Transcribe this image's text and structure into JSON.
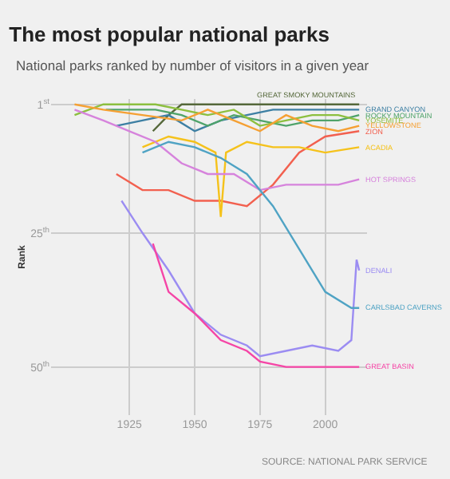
{
  "chart_data": {
    "type": "line",
    "title": "The most popular national parks",
    "subtitle": "National parks ranked by number of visitors in a given year",
    "ylabel": "Rank",
    "xlim": [
      1895,
      2016
    ],
    "xticks": [
      1925,
      1950,
      1975,
      2000
    ],
    "ylim": [
      59,
      0
    ],
    "yticks": [
      {
        "value": 1,
        "label": "1$^{st}$"
      },
      {
        "value": 25,
        "label": "25$^{th}$"
      },
      {
        "value": 50,
        "label": "50$^{th}$"
      }
    ],
    "grid": true,
    "legend": false,
    "marker": "none",
    "line_style": "solid",
    "annotations": [
      "SOURCE: NATIONAL PARK SERVICE"
    ],
    "series": [
      {
        "name": "GREAT SMOKY MOUNTAINS",
        "color": "#55683a",
        "x": [
          1934,
          1940,
          1945,
          1960,
          1980,
          2000,
          2013
        ],
        "values": [
          6,
          3,
          1,
          1,
          1,
          1,
          1
        ]
      },
      {
        "name": "GRAND CANYON",
        "color": "#3d7fa3",
        "x": [
          1920,
          1930,
          1940,
          1950,
          1960,
          1970,
          1980,
          1990,
          2000,
          2013
        ],
        "values": [
          5,
          4,
          3,
          6,
          4,
          3,
          2,
          2,
          2,
          2
        ]
      },
      {
        "name": "ROCKY MOUNTAIN",
        "color": "#4fa36a",
        "x": [
          1916,
          1925,
          1935,
          1945,
          1955,
          1965,
          1975,
          1985,
          1995,
          2005,
          2013
        ],
        "values": [
          2,
          2,
          2,
          3,
          5,
          3,
          4,
          5,
          4,
          4,
          3
        ]
      },
      {
        "name": "YOSEMITE",
        "color": "#8cbf3f",
        "x": [
          1904,
          1915,
          1925,
          1935,
          1945,
          1955,
          1965,
          1975,
          1985,
          1995,
          2005,
          2013
        ],
        "values": [
          3,
          1,
          1,
          1,
          2,
          3,
          2,
          5,
          4,
          3,
          3,
          4
        ]
      },
      {
        "name": "YELLOWSTONE",
        "color": "#f5a033",
        "x": [
          1904,
          1915,
          1930,
          1945,
          1955,
          1965,
          1975,
          1985,
          1995,
          2005,
          2013
        ],
        "values": [
          1,
          2,
          3,
          4,
          2,
          4,
          6,
          3,
          5,
          6,
          5
        ]
      },
      {
        "name": "ZION",
        "color": "#f2604f",
        "x": [
          1920,
          1930,
          1940,
          1950,
          1960,
          1970,
          1980,
          1990,
          2000,
          2013
        ],
        "values": [
          14,
          17,
          17,
          19,
          19,
          20,
          16,
          10,
          7,
          6
        ]
      },
      {
        "name": "ACADIA",
        "color": "#f5c21b",
        "x": [
          1930,
          1940,
          1950,
          1958,
          1960,
          1962,
          1970,
          1980,
          1990,
          2000,
          2013
        ],
        "values": [
          9,
          7,
          8,
          10,
          22,
          10,
          8,
          9,
          9,
          10,
          9
        ]
      },
      {
        "name": "HOT SPRINGS",
        "color": "#d683dc",
        "x": [
          1904,
          1915,
          1925,
          1935,
          1945,
          1955,
          1965,
          1975,
          1985,
          1995,
          2005,
          2013
        ],
        "values": [
          2,
          4,
          6,
          8,
          12,
          14,
          14,
          17,
          16,
          16,
          16,
          15
        ]
      },
      {
        "name": "DENALI",
        "color": "#9b8cf2",
        "x": [
          1922,
          1930,
          1940,
          1950,
          1960,
          1970,
          1975,
          1985,
          1995,
          2005,
          2010,
          2012,
          2013
        ],
        "values": [
          19,
          25,
          32,
          40,
          44,
          46,
          48,
          47,
          46,
          47,
          45,
          30,
          32
        ]
      },
      {
        "name": "CARLSBAD CAVERNS",
        "color": "#4fa3c4",
        "x": [
          1930,
          1940,
          1950,
          1960,
          1970,
          1980,
          1990,
          2000,
          2010,
          2013
        ],
        "values": [
          10,
          8,
          9,
          11,
          14,
          20,
          28,
          36,
          39,
          39
        ]
      },
      {
        "name": "GREAT BASIN",
        "color": "#f545a6",
        "x": [
          1934,
          1940,
          1950,
          1960,
          1970,
          1975,
          1985,
          1995,
          2005,
          2013
        ],
        "values": [
          27,
          36,
          40,
          45,
          47,
          49,
          50,
          50,
          50,
          50
        ]
      }
    ]
  }
}
